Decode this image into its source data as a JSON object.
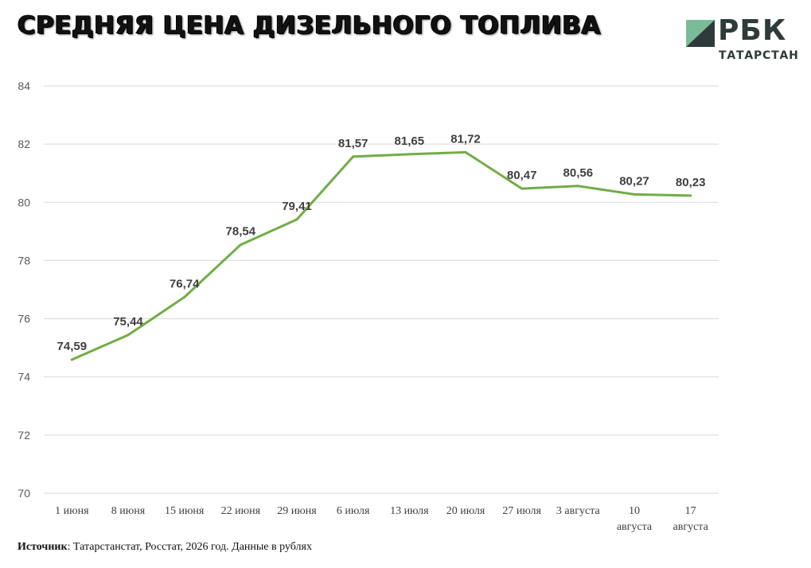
{
  "header": {
    "title": "СРЕДНЯЯ ЦЕНА ДИЗЕЛЬНОГО ТОПЛИВА"
  },
  "logo": {
    "text": "РБК",
    "subtext": "ТАТАРСТАН",
    "colors": {
      "green": "#7cbb9a",
      "dark": "#2f3b3a"
    }
  },
  "footer": {
    "source_label": "Источник",
    "source_text": ": Татарстанстат, Росстат, 2026 год. Данные в рублях"
  },
  "chart_data": {
    "type": "line",
    "title": "СРЕДНЯЯ ЦЕНА ДИЗЕЛЬНОГО ТОПЛИВА",
    "categories": [
      "1 июня",
      "8 июня",
      "15 июня",
      "22 июня",
      "29 июня",
      "6 июля",
      "13 июля",
      "20 июля",
      "27 июля",
      "3 августа",
      "10 августа",
      "17 августа"
    ],
    "series": [
      {
        "values": [
          74.59,
          75.44,
          76.74,
          78.54,
          79.41,
          81.57,
          81.65,
          81.72,
          80.47,
          80.56,
          80.27,
          80.23
        ],
        "labels": [
          "74,59",
          "75,44",
          "76,74",
          "78,54",
          "79,41",
          "81,57",
          "81,65",
          "81,72",
          "80,47",
          "80,56",
          "80,27",
          "80,23"
        ],
        "color": "#70ad47"
      }
    ],
    "yticks": [
      70,
      72,
      74,
      76,
      78,
      80,
      82,
      84
    ],
    "ylim": [
      70,
      84
    ],
    "xlabel": "",
    "ylabel": "",
    "grid": true,
    "gridColor": "#d9d9d9",
    "legend": "none",
    "data_labels": true
  }
}
